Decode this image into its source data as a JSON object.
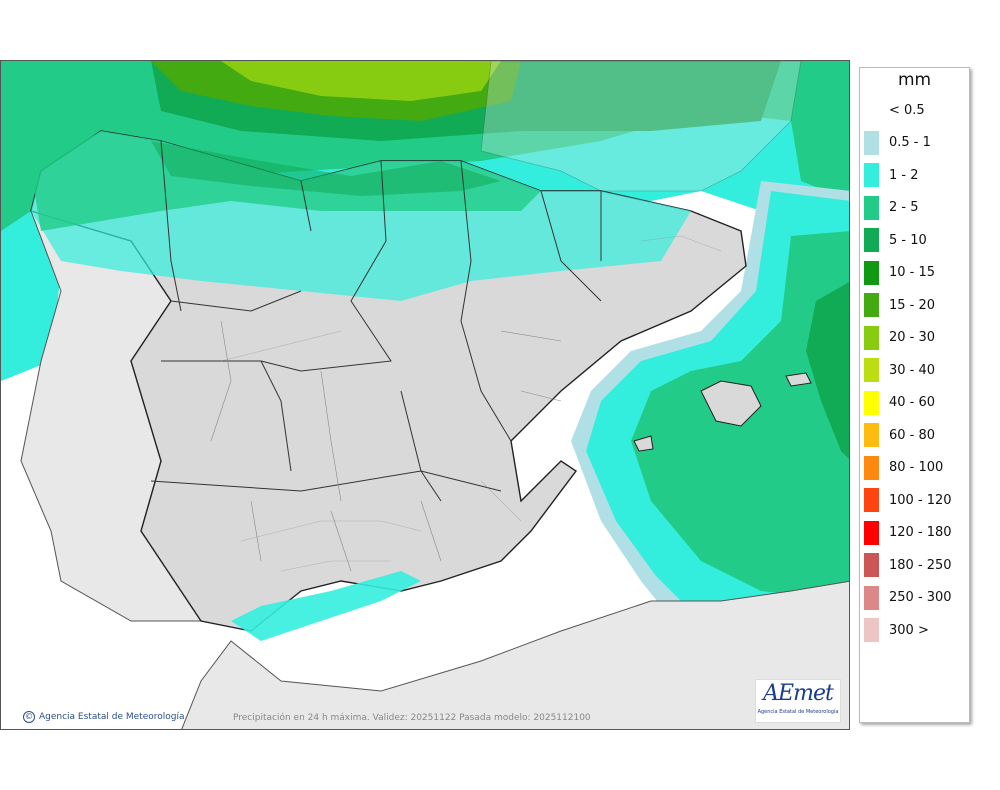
{
  "map": {
    "caption": "Precipitación en 24 h máxima. Validez: 20251122 Pasada modelo: 2025112100",
    "credit": "Agencia Estatal de Meteorología",
    "credit_symbol": "©",
    "logo_text": "AEmet",
    "logo_subtitle": "Agencia Estatal de Meteorología",
    "colors": {
      "land": "#d9d9d9",
      "outside_land": "#e8e8e8",
      "sea": "#ffffff",
      "border": "#222222"
    }
  },
  "legend": {
    "title": "mm",
    "items": [
      {
        "label": "< 0.5",
        "color": "#ffffff"
      },
      {
        "label": "0.5 - 1",
        "color": "#b0e0e6"
      },
      {
        "label": "1 - 2",
        "color": "#33eedd"
      },
      {
        "label": "2 - 5",
        "color": "#22cc88"
      },
      {
        "label": "5 - 10",
        "color": "#11aa55"
      },
      {
        "label": "10 - 15",
        "color": "#119911"
      },
      {
        "label": "15 - 20",
        "color": "#44aa11"
      },
      {
        "label": "20 - 30",
        "color": "#88cc11"
      },
      {
        "label": "30 - 40",
        "color": "#bbdd11"
      },
      {
        "label": "40 - 60",
        "color": "#ffff00"
      },
      {
        "label": "60 - 80",
        "color": "#ffbb11"
      },
      {
        "label": "80 - 100",
        "color": "#ff8811"
      },
      {
        "label": "100 - 120",
        "color": "#ff4411"
      },
      {
        "label": "120 - 180",
        "color": "#ff0000"
      },
      {
        "label": "180 - 250",
        "color": "#cc5555"
      },
      {
        "label": "250 - 300",
        "color": "#dd8888"
      },
      {
        "label": "300 >",
        "color": "#eec5c5"
      }
    ]
  }
}
